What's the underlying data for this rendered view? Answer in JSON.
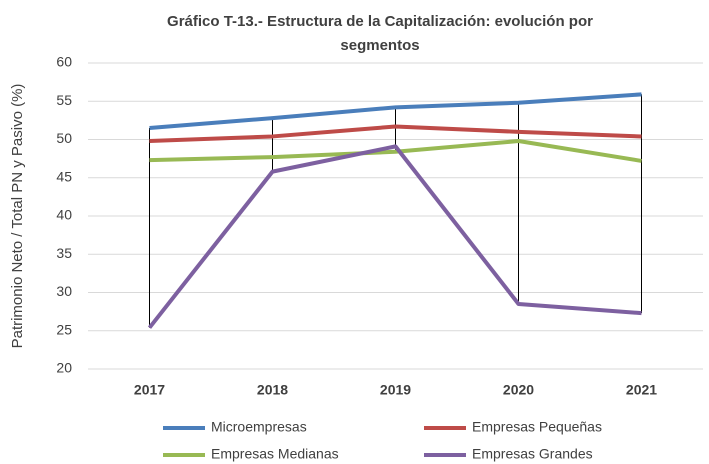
{
  "chart_data": {
    "type": "line",
    "title": [
      "Gráfico T-13.- Estructura de la Capitalización:  evolución por",
      "segmentos"
    ],
    "y_label": "Patrimonio Neto / Total PN y Pasivo (%)",
    "categories": [
      "2017",
      "2018",
      "2019",
      "2020",
      "2021"
    ],
    "series": [
      {
        "name": "Microempresas",
        "color": "#4a7ebb",
        "values": [
          51.5,
          52.8,
          54.2,
          54.8,
          55.9
        ]
      },
      {
        "name": "Empresas Pequeñas",
        "color": "#be4b48",
        "values": [
          49.8,
          50.4,
          51.7,
          51.0,
          50.4
        ]
      },
      {
        "name": "Empresas Medianas",
        "color": "#98b954",
        "values": [
          47.3,
          47.7,
          48.4,
          49.8,
          47.2
        ]
      },
      {
        "name": "Empresas Grandes",
        "color": "#7d60a0",
        "values": [
          25.4,
          45.8,
          49.1,
          28.5,
          27.3
        ]
      }
    ],
    "ylim": [
      20,
      60
    ],
    "yticks": [
      20,
      25,
      30,
      35,
      40,
      45,
      50,
      55,
      60
    ],
    "grid": true,
    "high_low_lines": true
  }
}
